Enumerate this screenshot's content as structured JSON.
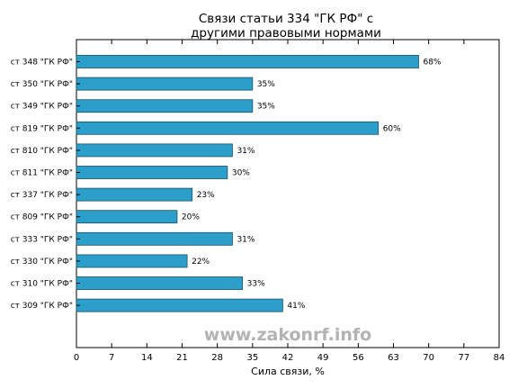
{
  "colors": {
    "bar": "#2b9fc9",
    "bar_edge": "#1b4f66",
    "watermark": "#b3b3b3"
  },
  "watermark": "www.zakonrf.info",
  "chart_data": {
    "type": "bar",
    "orientation": "horizontal",
    "title_lines": [
      "Связи статьи 334 \"ГК РФ\" с",
      "другими правовыми нормами"
    ],
    "xlabel": "Сила связи, %",
    "ylabel": "",
    "xlim": [
      0,
      84
    ],
    "xticks": [
      0,
      7,
      14,
      21,
      28,
      35,
      42,
      49,
      56,
      63,
      70,
      77,
      84
    ],
    "categories": [
      "ст 348 \"ГК РФ\"",
      "ст 350 \"ГК РФ\"",
      "ст 349 \"ГК РФ\"",
      "ст 819 \"ГК РФ\"",
      "ст 810 \"ГК РФ\"",
      "ст 811 \"ГК РФ\"",
      "ст 337 \"ГК РФ\"",
      "ст 809 \"ГК РФ\"",
      "ст 333 \"ГК РФ\"",
      "ст 330 \"ГК РФ\"",
      "ст 310 \"ГК РФ\"",
      "ст 309 \"ГК РФ\""
    ],
    "values": [
      68,
      35,
      35,
      60,
      31,
      30,
      23,
      20,
      31,
      22,
      33,
      41
    ],
    "data_labels": [
      "68%",
      "35%",
      "35%",
      "60%",
      "31%",
      "30%",
      "23%",
      "20%",
      "31%",
      "22%",
      "33%",
      "41%"
    ],
    "grid": false,
    "legend": "none"
  }
}
